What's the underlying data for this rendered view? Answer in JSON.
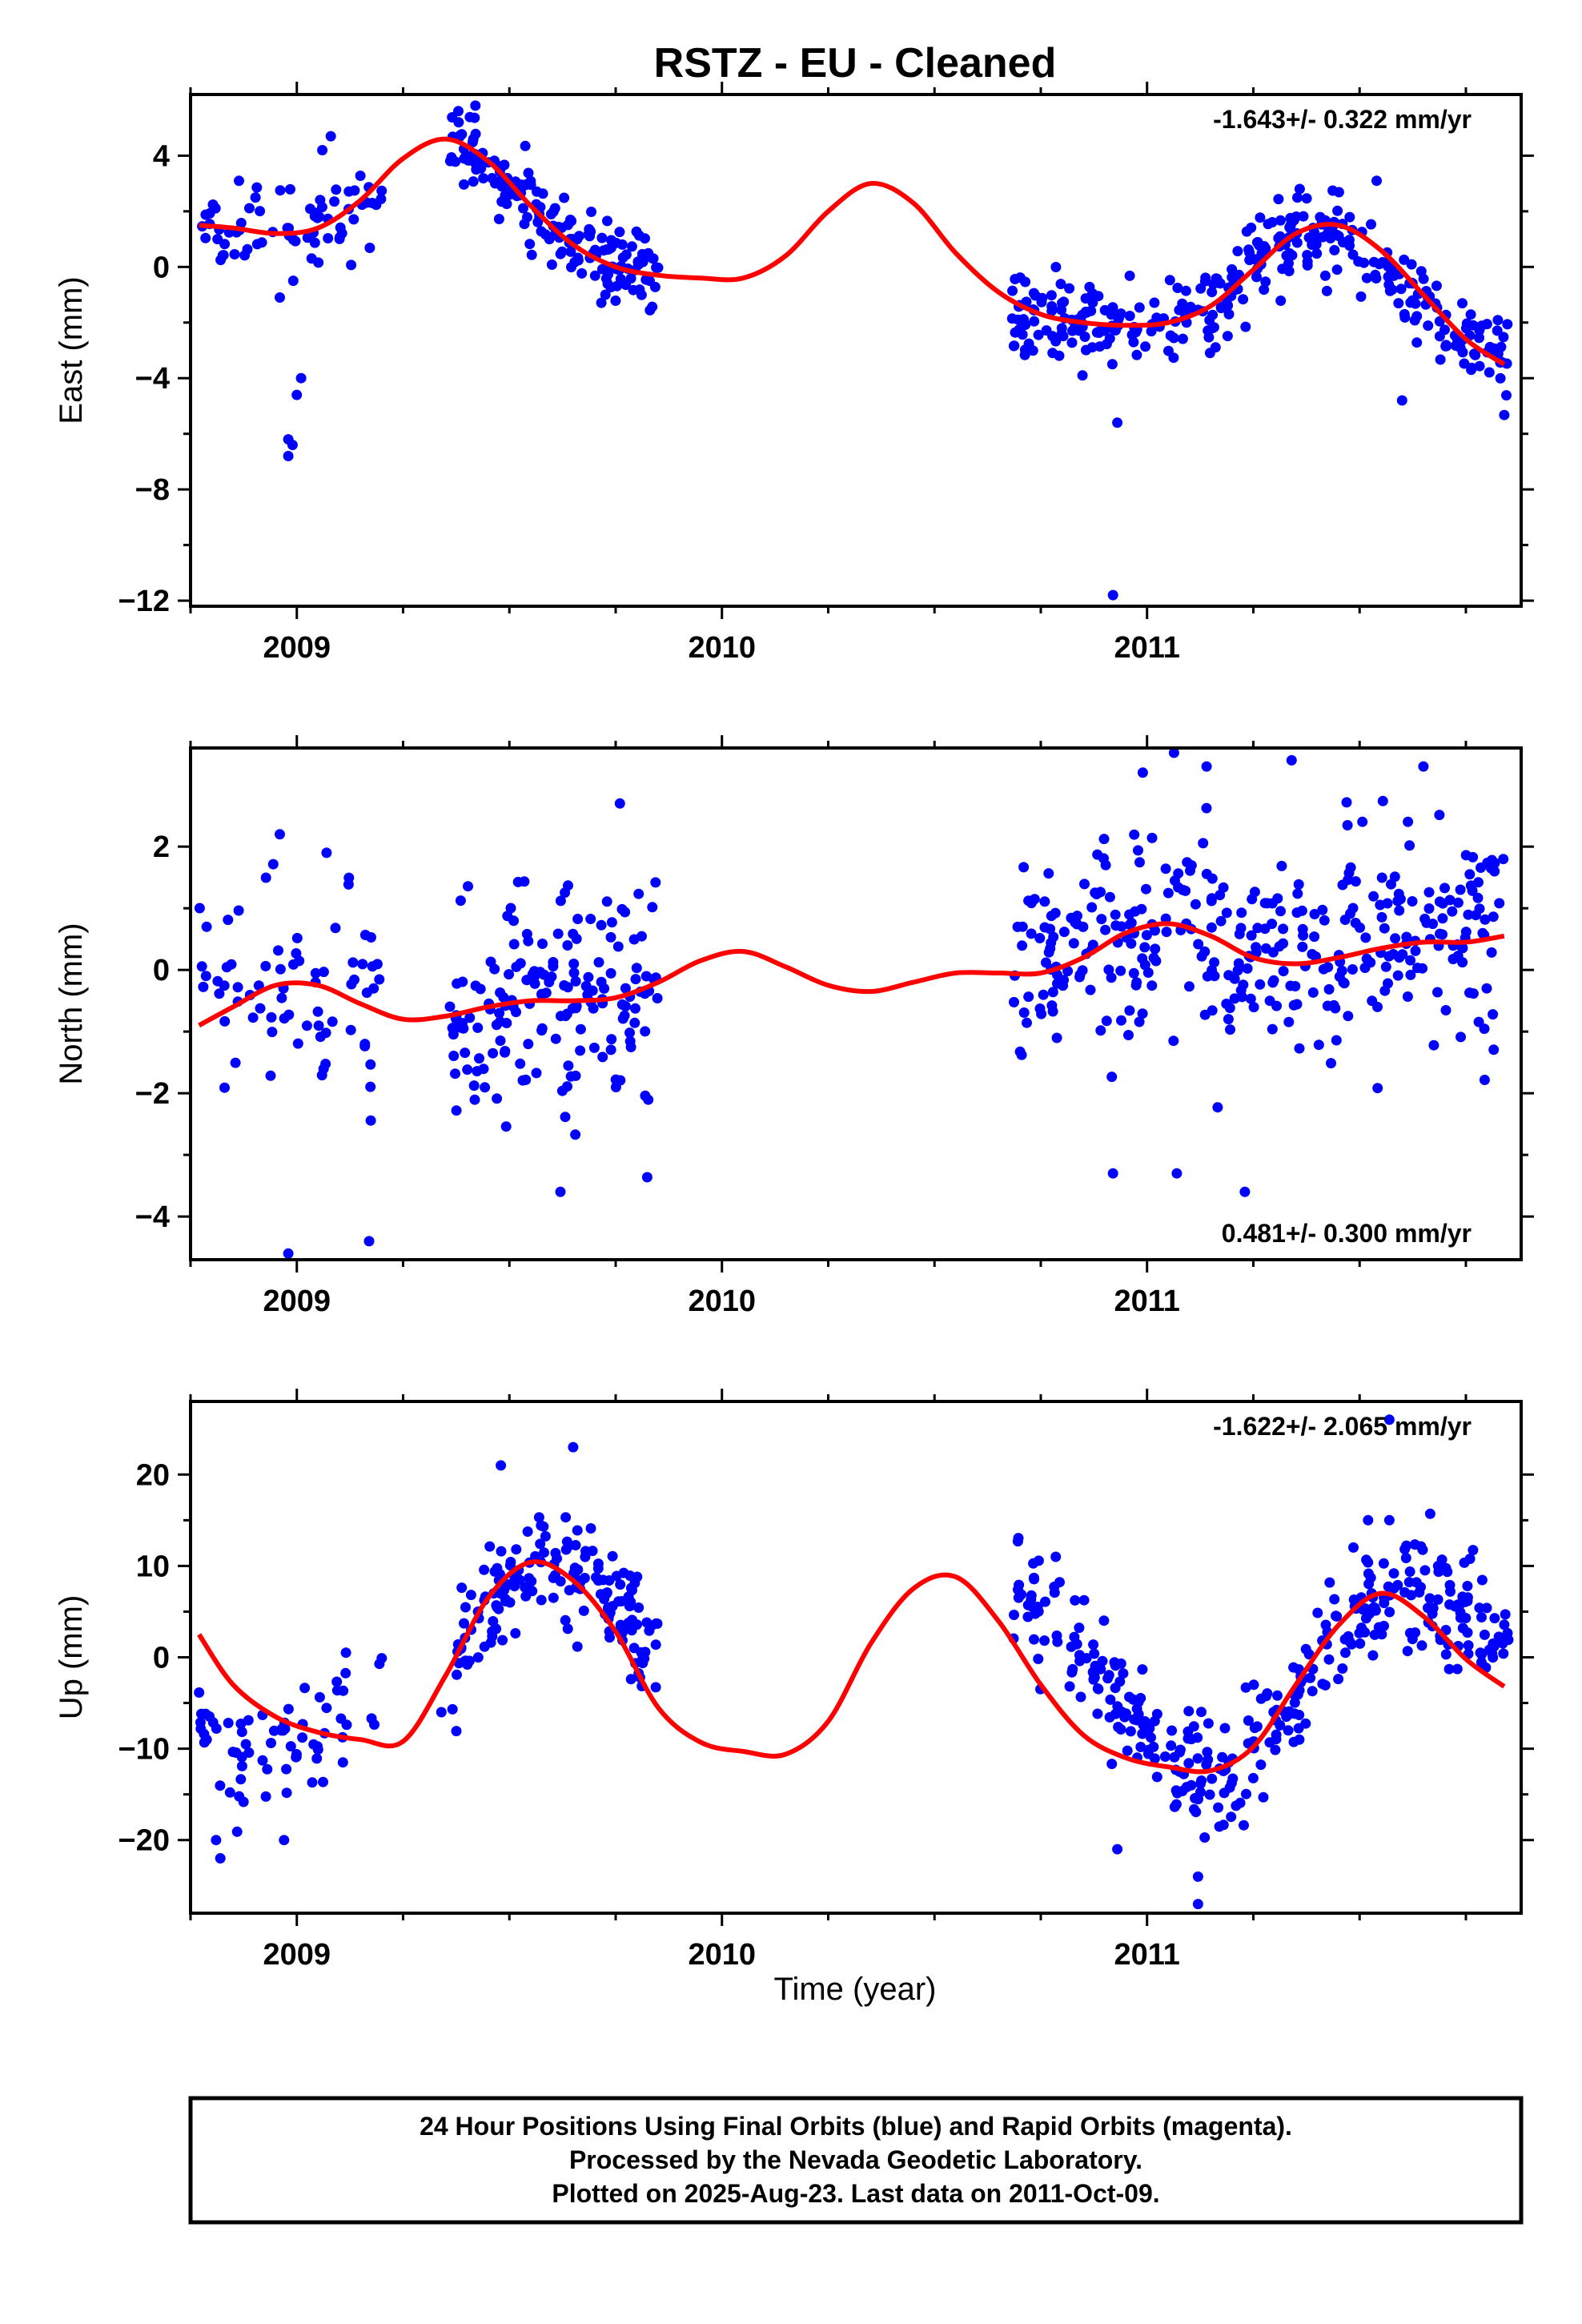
{
  "title": "RSTZ  - EU - Cleaned",
  "x_label": "Time (year)",
  "footer": {
    "line1": "24 Hour Positions Using Final Orbits (blue) and Rapid Orbits (magenta).",
    "line2": "Processed by the Nevada Geodetic Laboratory.",
    "line3": "Plotted on 2025-Aug-23. Last data on 2011-Oct-09."
  },
  "colors": {
    "final_orbits": "#0000ff",
    "rapid_orbits": "#ff00ff",
    "model_fit": "#ff0000"
  },
  "chart_data": [
    {
      "type": "scatter",
      "panel": "East",
      "ylabel": "East (mm)",
      "rate_label": "-1.643+/- 0.322 mm/yr",
      "rate_position": "top-right",
      "xlim": [
        2008.75,
        2011.88
      ],
      "ylim": [
        -12.2,
        6.2
      ],
      "x_ticks": [
        2009,
        2010,
        2011
      ],
      "y_ticks": [
        4,
        0,
        -4,
        -8,
        -12
      ],
      "series": [
        {
          "kind": "points",
          "segments": [
            {
              "x_range": [
                2008.77,
                2009.2
              ],
              "trend": [
                [
                  2008.77,
                  1.4
                ],
                [
                  2008.95,
                  1.2
                ],
                [
                  2009.05,
                  1.5
                ],
                [
                  2009.2,
                  2.2
                ]
              ],
              "scatter": 0.9,
              "n": 70
            },
            {
              "x_range": [
                2009.36,
                2009.85
              ],
              "trend": [
                [
                  2009.36,
                  4.5
                ],
                [
                  2009.45,
                  3.6
                ],
                [
                  2009.55,
                  2.1
                ],
                [
                  2009.65,
                  0.8
                ],
                [
                  2009.75,
                  0.0
                ],
                [
                  2009.85,
                  -0.3
                ]
              ],
              "scatter": 0.8,
              "n": 170
            },
            {
              "x_range": [
                2010.68,
                2011.85
              ],
              "trend": [
                [
                  2010.68,
                  -1.7
                ],
                [
                  2010.9,
                  -2.1
                ],
                [
                  2011.05,
                  -2.0
                ],
                [
                  2011.2,
                  -0.7
                ],
                [
                  2011.35,
                  1.2
                ],
                [
                  2011.45,
                  1.4
                ],
                [
                  2011.6,
                  -0.6
                ],
                [
                  2011.75,
                  -2.7
                ],
                [
                  2011.85,
                  -3.4
                ]
              ],
              "scatter": 0.9,
              "n": 350
            }
          ],
          "outliers": [
            [
              2008.98,
              -6.2
            ],
            [
              2008.98,
              -6.8
            ],
            [
              2008.99,
              -6.4
            ],
            [
              2009.0,
              -4.6
            ],
            [
              2009.01,
              -4.0
            ],
            [
              2008.96,
              -1.1
            ],
            [
              2010.93,
              -5.6
            ],
            [
              2010.92,
              -11.8
            ],
            [
              2011.6,
              -4.8
            ],
            [
              2009.08,
              4.7
            ],
            [
              2009.06,
              4.2
            ],
            [
              2009.38,
              5.6
            ],
            [
              2009.42,
              5.8
            ],
            [
              2011.54,
              3.1
            ]
          ]
        },
        {
          "kind": "model",
          "x": [
            2008.77,
            2008.85,
            2008.95,
            2009.05,
            2009.15,
            2009.25,
            2009.35,
            2009.45,
            2009.55,
            2009.65,
            2009.75,
            2009.85,
            2009.95,
            2010.05,
            2010.15,
            2010.25,
            2010.35,
            2010.45,
            2010.55,
            2010.65,
            2010.75,
            2010.85,
            2010.95,
            2011.05,
            2011.15,
            2011.25,
            2011.35,
            2011.45,
            2011.55,
            2011.65,
            2011.75,
            2011.84
          ],
          "y": [
            1.5,
            1.4,
            1.2,
            1.4,
            2.4,
            3.9,
            4.6,
            3.8,
            2.2,
            0.8,
            0.0,
            -0.3,
            -0.4,
            -0.4,
            0.4,
            2.0,
            3.0,
            2.3,
            0.5,
            -0.9,
            -1.7,
            -2.0,
            -2.1,
            -2.0,
            -1.4,
            -0.1,
            1.2,
            1.5,
            0.6,
            -1.0,
            -2.6,
            -3.5
          ]
        }
      ]
    },
    {
      "type": "scatter",
      "panel": "North",
      "ylabel": "North (mm)",
      "rate_label": "0.481+/- 0.300 mm/yr",
      "rate_position": "bottom-right",
      "xlim": [
        2008.75,
        2011.88
      ],
      "ylim": [
        -4.7,
        3.6
      ],
      "x_ticks": [
        2009,
        2010,
        2011
      ],
      "y_ticks": [
        2,
        0,
        -2,
        -4
      ],
      "series": [
        {
          "kind": "points",
          "segments": [
            {
              "x_range": [
                2008.77,
                2009.2
              ],
              "trend": [
                [
                  2008.77,
                  -0.6
                ],
                [
                  2008.9,
                  -0.3
                ],
                [
                  2009.0,
                  -0.2
                ],
                [
                  2009.2,
                  -0.8
                ]
              ],
              "scatter": 1.0,
              "n": 70
            },
            {
              "x_range": [
                2009.36,
                2009.85
              ],
              "trend": [
                [
                  2009.36,
                  -0.8
                ],
                [
                  2009.5,
                  -0.6
                ],
                [
                  2009.65,
                  -0.5
                ],
                [
                  2009.85,
                  -0.4
                ]
              ],
              "scatter": 1.05,
              "n": 170
            },
            {
              "x_range": [
                2010.68,
                2011.85
              ],
              "trend": [
                [
                  2010.68,
                  -0.1
                ],
                [
                  2010.85,
                  0.3
                ],
                [
                  2011.0,
                  0.7
                ],
                [
                  2011.15,
                  0.6
                ],
                [
                  2011.3,
                  0.1
                ],
                [
                  2011.5,
                  0.3
                ],
                [
                  2011.7,
                  0.5
                ],
                [
                  2011.85,
                  0.5
                ]
              ],
              "scatter": 1.05,
              "n": 350
            }
          ],
          "outliers": [
            [
              2008.98,
              -4.6
            ],
            [
              2009.17,
              -4.4
            ],
            [
              2009.62,
              -3.6
            ],
            [
              2011.23,
              -3.6
            ],
            [
              2010.92,
              -3.3
            ],
            [
              2011.07,
              -3.3
            ],
            [
              2009.76,
              2.7
            ],
            [
              2011.34,
              3.4
            ],
            [
              2011.14,
              3.3
            ],
            [
              2011.65,
              3.3
            ],
            [
              2010.99,
              3.2
            ],
            [
              2009.07,
              1.9
            ],
            [
              2008.96,
              2.2
            ]
          ]
        },
        {
          "kind": "model",
          "x": [
            2008.77,
            2008.85,
            2008.95,
            2009.05,
            2009.15,
            2009.25,
            2009.35,
            2009.45,
            2009.55,
            2009.65,
            2009.75,
            2009.85,
            2009.95,
            2010.05,
            2010.15,
            2010.25,
            2010.35,
            2010.45,
            2010.55,
            2010.65,
            2010.75,
            2010.85,
            2010.95,
            2011.05,
            2011.15,
            2011.25,
            2011.35,
            2011.45,
            2011.55,
            2011.65,
            2011.75,
            2011.84
          ],
          "y": [
            -0.9,
            -0.6,
            -0.25,
            -0.25,
            -0.55,
            -0.8,
            -0.75,
            -0.6,
            -0.5,
            -0.5,
            -0.45,
            -0.2,
            0.15,
            0.3,
            0.05,
            -0.25,
            -0.35,
            -0.2,
            -0.05,
            -0.05,
            -0.05,
            0.2,
            0.6,
            0.75,
            0.55,
            0.2,
            0.1,
            0.2,
            0.35,
            0.45,
            0.45,
            0.55
          ]
        }
      ]
    },
    {
      "type": "scatter",
      "panel": "Up",
      "ylabel": "Up (mm)",
      "rate_label": "-1.622+/- 2.065 mm/yr",
      "rate_position": "top-right",
      "xlim": [
        2008.75,
        2011.88
      ],
      "ylim": [
        -28,
        28
      ],
      "x_ticks": [
        2009,
        2010,
        2011
      ],
      "y_ticks": [
        20,
        10,
        0,
        -10,
        -20
      ],
      "series": [
        {
          "kind": "points",
          "segments": [
            {
              "x_range": [
                2008.77,
                2009.2
              ],
              "trend": [
                [
                  2008.77,
                  -8
                ],
                [
                  2008.87,
                  -12
                ],
                [
                  2008.97,
                  -9
                ],
                [
                  2009.1,
                  -6
                ],
                [
                  2009.2,
                  -4
                ]
              ],
              "scatter": 3.6,
              "n": 70
            },
            {
              "x_range": [
                2009.36,
                2009.85
              ],
              "trend": [
                [
                  2009.36,
                  -2
                ],
                [
                  2009.45,
                  5
                ],
                [
                  2009.55,
                  11
                ],
                [
                  2009.65,
                  10
                ],
                [
                  2009.75,
                  6
                ],
                [
                  2009.85,
                  1
                ]
              ],
              "scatter": 3.2,
              "n": 170
            },
            {
              "x_range": [
                2010.68,
                2011.85
              ],
              "trend": [
                [
                  2010.68,
                  8
                ],
                [
                  2010.75,
                  4
                ],
                [
                  2010.85,
                  0
                ],
                [
                  2010.95,
                  -6
                ],
                [
                  2011.05,
                  -12
                ],
                [
                  2011.15,
                  -14
                ],
                [
                  2011.25,
                  -10
                ],
                [
                  2011.35,
                  -4
                ],
                [
                  2011.45,
                  3
                ],
                [
                  2011.55,
                  7
                ],
                [
                  2011.65,
                  7
                ],
                [
                  2011.75,
                  4
                ],
                [
                  2011.85,
                  0
                ]
              ],
              "scatter": 3.6,
              "n": 350
            }
          ],
          "outliers": [
            [
              2008.82,
              -22
            ],
            [
              2008.81,
              -20
            ],
            [
              2008.97,
              -20
            ],
            [
              2010.93,
              -21
            ],
            [
              2011.12,
              -27
            ],
            [
              2011.12,
              -24
            ],
            [
              2011.57,
              26
            ],
            [
              2009.65,
              23
            ],
            [
              2009.48,
              21
            ],
            [
              2011.52,
              15
            ],
            [
              2011.57,
              15
            ],
            [
              2009.34,
              -6
            ]
          ]
        },
        {
          "kind": "model",
          "x": [
            2008.77,
            2008.85,
            2008.95,
            2009.05,
            2009.15,
            2009.25,
            2009.35,
            2009.45,
            2009.55,
            2009.65,
            2009.75,
            2009.85,
            2009.95,
            2010.05,
            2010.15,
            2010.25,
            2010.35,
            2010.45,
            2010.55,
            2010.65,
            2010.75,
            2010.85,
            2010.95,
            2011.05,
            2011.15,
            2011.25,
            2011.35,
            2011.45,
            2011.55,
            2011.65,
            2011.75,
            2011.84
          ],
          "y": [
            2.5,
            -3,
            -6.5,
            -8.2,
            -9,
            -9.2,
            -2,
            6.5,
            10.4,
            8.4,
            2.8,
            -5.5,
            -9.3,
            -10.3,
            -10.6,
            -7,
            1.5,
            7.5,
            8.8,
            4,
            -3,
            -8.5,
            -11,
            -12,
            -12.4,
            -9.8,
            -3,
            3.5,
            7,
            4.5,
            -0.2,
            -3.2
          ]
        }
      ]
    }
  ]
}
